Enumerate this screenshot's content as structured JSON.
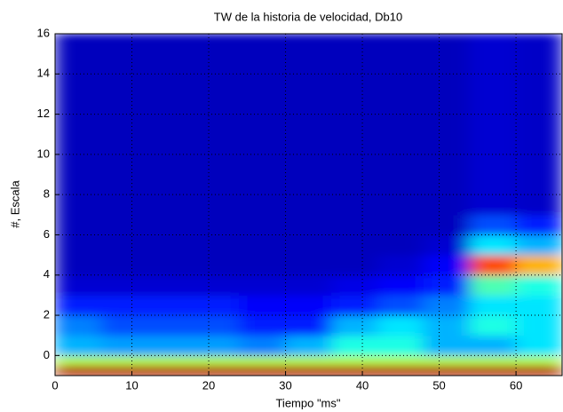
{
  "chart_data": {
    "type": "heatmap",
    "title": "TW de la historia de velocidad, Db10",
    "xlabel": "Tiempo \"ms\"",
    "ylabel": "#, Escala",
    "xlim": [
      0,
      66
    ],
    "ylim": [
      -1,
      16
    ],
    "xticks": [
      0,
      10,
      20,
      30,
      40,
      50,
      60
    ],
    "yticks": [
      0,
      2,
      4,
      6,
      8,
      10,
      12,
      14,
      16
    ],
    "grid": true,
    "colormap": "jet",
    "xbins": [
      0,
      6,
      12,
      18,
      24,
      30,
      36,
      42,
      48,
      54,
      60,
      66
    ],
    "ybins": [
      -1,
      -0.5,
      0,
      1,
      2,
      3,
      4,
      5,
      6,
      7,
      16
    ],
    "z": [
      [
        0.95,
        0.95,
        0.95,
        0.95,
        0.95,
        0.95,
        0.95,
        0.95,
        0.95,
        0.95,
        0.95
      ],
      [
        0.55,
        0.55,
        0.55,
        0.55,
        0.55,
        0.55,
        0.55,
        0.55,
        0.55,
        0.55,
        0.55
      ],
      [
        0.3,
        0.28,
        0.28,
        0.28,
        0.25,
        0.3,
        0.4,
        0.4,
        0.3,
        0.3,
        0.35
      ],
      [
        0.25,
        0.2,
        0.2,
        0.2,
        0.15,
        0.15,
        0.3,
        0.35,
        0.3,
        0.4,
        0.35
      ],
      [
        0.15,
        0.15,
        0.15,
        0.15,
        0.12,
        0.12,
        0.15,
        0.2,
        0.25,
        0.35,
        0.35
      ],
      [
        0.08,
        0.08,
        0.08,
        0.08,
        0.08,
        0.08,
        0.1,
        0.12,
        0.15,
        0.45,
        0.4
      ],
      [
        0.06,
        0.06,
        0.06,
        0.06,
        0.06,
        0.06,
        0.06,
        0.08,
        0.12,
        0.8,
        0.7
      ],
      [
        0.06,
        0.06,
        0.06,
        0.06,
        0.06,
        0.06,
        0.06,
        0.06,
        0.08,
        0.35,
        0.3
      ],
      [
        0.06,
        0.06,
        0.06,
        0.06,
        0.06,
        0.06,
        0.06,
        0.06,
        0.06,
        0.2,
        0.15
      ],
      [
        0.06,
        0.06,
        0.06,
        0.06,
        0.06,
        0.06,
        0.06,
        0.06,
        0.06,
        0.08,
        0.07
      ]
    ]
  }
}
